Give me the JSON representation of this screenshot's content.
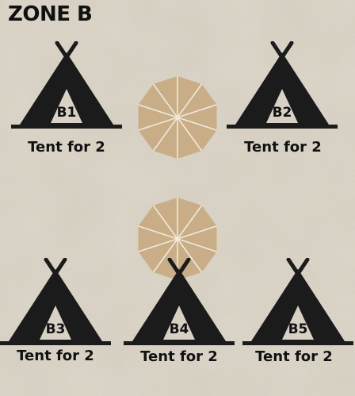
{
  "zone": {
    "title": "ZONE B"
  },
  "tents": [
    {
      "id": "B1",
      "caption": "Tent for 2"
    },
    {
      "id": "B2",
      "caption": "Tent for 2"
    },
    {
      "id": "B3",
      "caption": "Tent for 2"
    },
    {
      "id": "B4",
      "caption": "Tent for 2"
    },
    {
      "id": "B5",
      "caption": "Tent for 2"
    }
  ],
  "icons": {
    "tent": "tent-icon",
    "umbrella": "umbrella-icon"
  },
  "colors": {
    "background": "#e4ded2",
    "tent": "#1b1b1b",
    "text": "#111111",
    "umbrella": "#c5a77c"
  }
}
